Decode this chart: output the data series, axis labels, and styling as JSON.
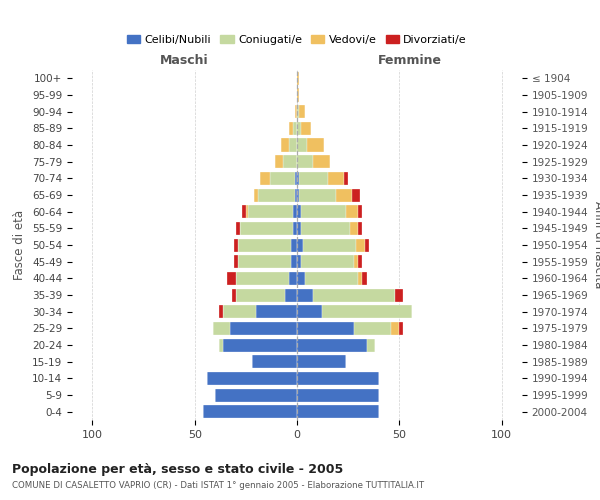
{
  "age_groups": [
    "0-4",
    "5-9",
    "10-14",
    "15-19",
    "20-24",
    "25-29",
    "30-34",
    "35-39",
    "40-44",
    "45-49",
    "50-54",
    "55-59",
    "60-64",
    "65-69",
    "70-74",
    "75-79",
    "80-84",
    "85-89",
    "90-94",
    "95-99",
    "100+"
  ],
  "birth_years": [
    "2000-2004",
    "1995-1999",
    "1990-1994",
    "1985-1989",
    "1980-1984",
    "1975-1979",
    "1970-1974",
    "1965-1969",
    "1960-1964",
    "1955-1959",
    "1950-1954",
    "1945-1949",
    "1940-1944",
    "1935-1939",
    "1930-1934",
    "1925-1929",
    "1920-1924",
    "1915-1919",
    "1910-1914",
    "1905-1909",
    "≤ 1904"
  ],
  "colors": {
    "celibi": "#4472c4",
    "coniugati": "#c5d9a0",
    "vedovi": "#f0c060",
    "divorziati": "#cc2020"
  },
  "males": {
    "celibi": [
      46,
      40,
      44,
      22,
      36,
      33,
      20,
      6,
      4,
      3,
      3,
      2,
      2,
      1,
      1,
      0,
      0,
      0,
      0,
      0,
      0
    ],
    "coniugati": [
      0,
      0,
      0,
      0,
      2,
      8,
      16,
      24,
      26,
      26,
      26,
      26,
      22,
      18,
      12,
      7,
      4,
      2,
      0,
      0,
      0
    ],
    "vedovi": [
      0,
      0,
      0,
      0,
      0,
      0,
      0,
      0,
      0,
      0,
      0,
      0,
      1,
      2,
      5,
      4,
      4,
      2,
      1,
      0,
      0
    ],
    "divorziati": [
      0,
      0,
      0,
      0,
      0,
      0,
      2,
      2,
      4,
      2,
      2,
      2,
      2,
      0,
      0,
      0,
      0,
      0,
      0,
      0,
      0
    ]
  },
  "females": {
    "celibi": [
      40,
      40,
      40,
      24,
      34,
      28,
      12,
      8,
      4,
      2,
      3,
      2,
      2,
      1,
      1,
      0,
      0,
      0,
      0,
      0,
      0
    ],
    "coniugati": [
      0,
      0,
      0,
      0,
      4,
      18,
      44,
      40,
      26,
      26,
      26,
      24,
      22,
      18,
      14,
      8,
      5,
      2,
      1,
      0,
      0
    ],
    "vedovi": [
      0,
      0,
      0,
      0,
      0,
      4,
      0,
      0,
      2,
      2,
      4,
      4,
      6,
      8,
      8,
      8,
      8,
      5,
      3,
      1,
      1
    ],
    "divorziati": [
      0,
      0,
      0,
      0,
      0,
      2,
      0,
      4,
      2,
      2,
      2,
      2,
      2,
      4,
      2,
      0,
      0,
      0,
      0,
      0,
      0
    ]
  },
  "xlim": 110,
  "title": "Popolazione per età, sesso e stato civile - 2005",
  "subtitle": "COMUNE DI CASALETTO VAPRIO (CR) - Dati ISTAT 1° gennaio 2005 - Elaborazione TUTTITALIA.IT",
  "xlabel_left": "Maschi",
  "xlabel_right": "Femmine",
  "ylabel_left": "Fasce di età",
  "ylabel_right": "Anni di nascita",
  "legend_labels": [
    "Celibi/Nubili",
    "Coniugati/e",
    "Vedovi/e",
    "Divorziati/e"
  ],
  "background_color": "#ffffff",
  "grid_color": "#cccccc"
}
